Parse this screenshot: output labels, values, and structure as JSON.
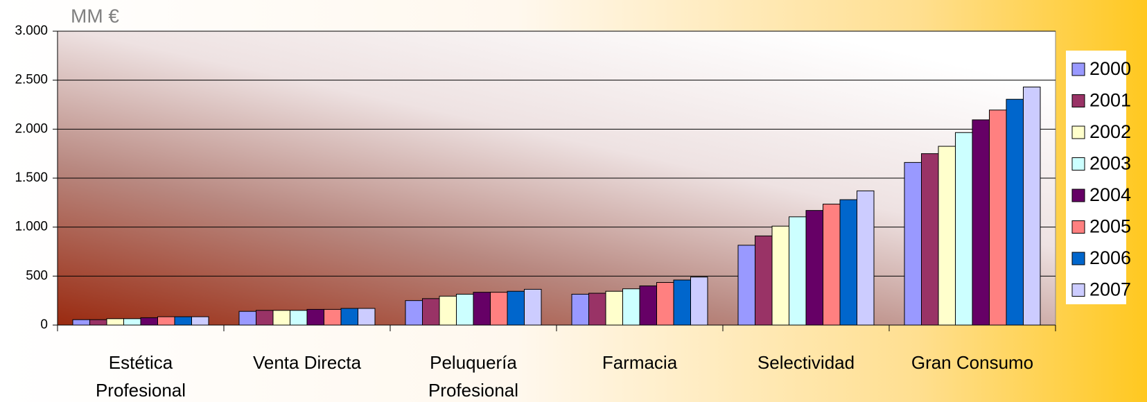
{
  "chart_data": {
    "type": "bar",
    "title": "MM €",
    "categories": [
      "Estética Profesional",
      "Venta Directa",
      "Peluquería Profesional",
      "Farmacia",
      "Selectividad",
      "Gran Consumo"
    ],
    "series": [
      {
        "name": "2000",
        "color": "#9999ff",
        "values": [
          55,
          140,
          250,
          315,
          815,
          1660
        ]
      },
      {
        "name": "2001",
        "color": "#993366",
        "values": [
          55,
          150,
          270,
          325,
          910,
          1750
        ]
      },
      {
        "name": "2002",
        "color": "#ffffcc",
        "values": [
          65,
          150,
          295,
          345,
          1010,
          1825
        ]
      },
      {
        "name": "2003",
        "color": "#ccffff",
        "values": [
          65,
          150,
          315,
          370,
          1105,
          1965
        ]
      },
      {
        "name": "2004",
        "color": "#660066",
        "values": [
          75,
          160,
          335,
          400,
          1170,
          2095
        ]
      },
      {
        "name": "2005",
        "color": "#ff8080",
        "values": [
          85,
          160,
          335,
          435,
          1235,
          2195
        ]
      },
      {
        "name": "2006",
        "color": "#0066cc",
        "values": [
          85,
          170,
          345,
          460,
          1280,
          2305
        ]
      },
      {
        "name": "2007",
        "color": "#ccccff",
        "values": [
          85,
          170,
          365,
          490,
          1370,
          2430
        ]
      }
    ],
    "ylim": [
      0,
      3000
    ],
    "yticks": [
      0,
      500,
      {
        "value": 1000,
        "label": "1.000"
      },
      {
        "value": 1500,
        "label": "1.500"
      },
      {
        "value": 2000,
        "label": "2.000"
      },
      {
        "value": 2500,
        "label": "2.500"
      },
      {
        "value": 3000,
        "label": "3.000"
      }
    ],
    "grid": true,
    "legend": "right"
  }
}
